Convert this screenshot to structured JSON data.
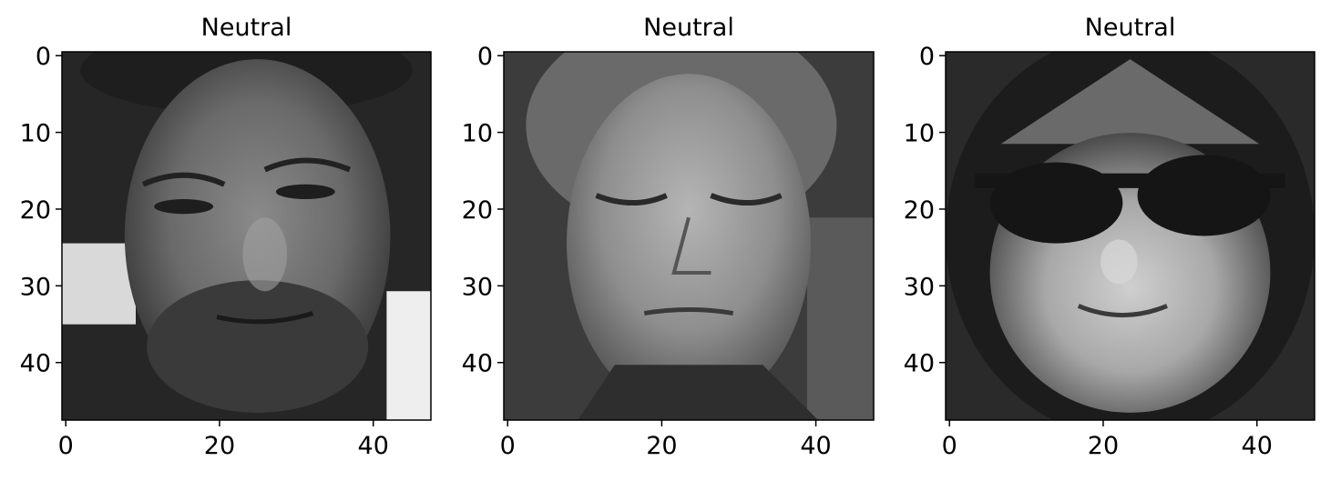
{
  "chart_data": [
    {
      "type": "heatmap",
      "title": "Neutral",
      "image_subject": "face",
      "colormap": "gray",
      "image_size": [
        48,
        48
      ],
      "xlim": [
        0,
        48
      ],
      "ylim": [
        0,
        48
      ],
      "x_ticks": [
        0,
        20,
        40
      ],
      "y_ticks": [
        0,
        10,
        20,
        30,
        40
      ]
    },
    {
      "type": "heatmap",
      "title": "Neutral",
      "image_subject": "face",
      "colormap": "gray",
      "image_size": [
        48,
        48
      ],
      "xlim": [
        0,
        48
      ],
      "ylim": [
        0,
        48
      ],
      "x_ticks": [
        0,
        20,
        40
      ],
      "y_ticks": [
        0,
        10,
        20,
        30,
        40
      ]
    },
    {
      "type": "heatmap",
      "title": "Neutral",
      "image_subject": "face with sunglasses",
      "colormap": "gray",
      "image_size": [
        48,
        48
      ],
      "xlim": [
        0,
        48
      ],
      "ylim": [
        0,
        48
      ],
      "x_ticks": [
        0,
        20,
        40
      ],
      "y_ticks": [
        0,
        10,
        20,
        30,
        40
      ]
    }
  ]
}
